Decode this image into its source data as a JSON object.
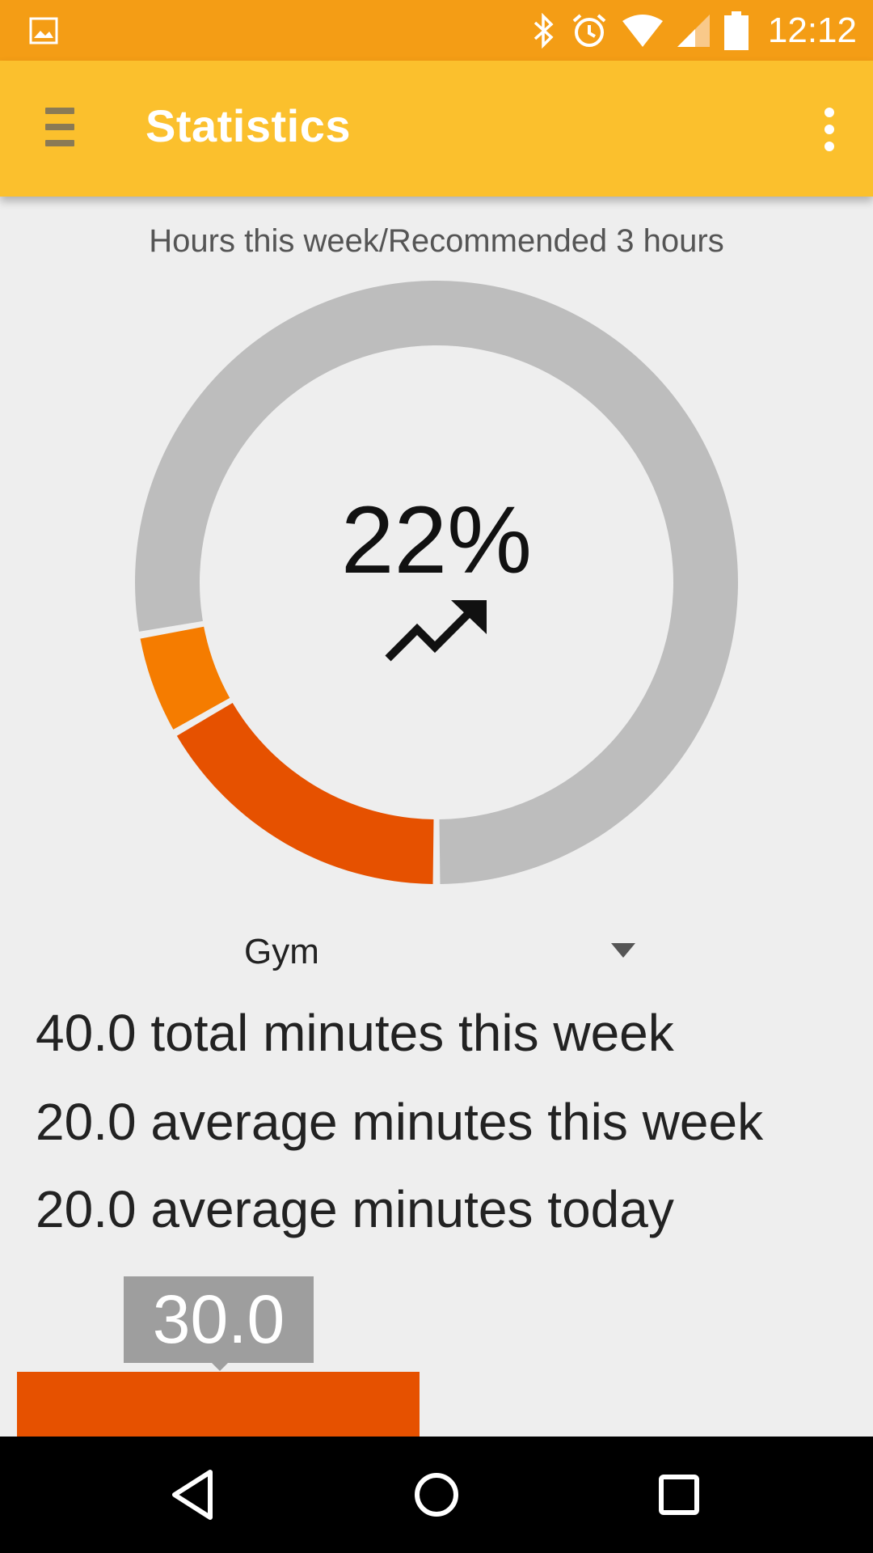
{
  "status_bar": {
    "time": "12:12",
    "icons": [
      "image-icon",
      "bluetooth-icon",
      "alarm-icon",
      "wifi-icon",
      "signal-icon",
      "battery-icon"
    ]
  },
  "app_bar": {
    "title": "Statistics",
    "menu_icon": "hamburger-menu-icon",
    "overflow_icon": "more-vert-icon"
  },
  "chart": {
    "caption": "Hours this week/Recommended 3 hours",
    "percent_label": "22%",
    "trend_icon": "trending-up-icon"
  },
  "chart_data": {
    "type": "pie",
    "title": "Hours this week/Recommended 3 hours",
    "center_label": "22%",
    "slices": [
      {
        "value": 0.167,
        "color": "#e65100"
      },
      {
        "value": 0.055,
        "color": "#f57c00"
      },
      {
        "value": 0.778,
        "color": "#bdbdbd"
      }
    ],
    "donut": true
  },
  "activity_selector": {
    "selected": "Gym"
  },
  "stats": {
    "total_week": "40.0 total minutes this week",
    "avg_week": "20.0 average minutes this week",
    "avg_today": "20.0 average minutes today"
  },
  "bar_chart": {
    "tooltip_value": "30.0",
    "bar_color": "#e65100"
  },
  "colors": {
    "status_bar": "#f49d15",
    "app_bar": "#fbc02d",
    "background": "#eeeeee"
  },
  "nav_bar": {
    "back_icon": "back-icon",
    "home_icon": "home-icon",
    "recents_icon": "recents-icon"
  }
}
